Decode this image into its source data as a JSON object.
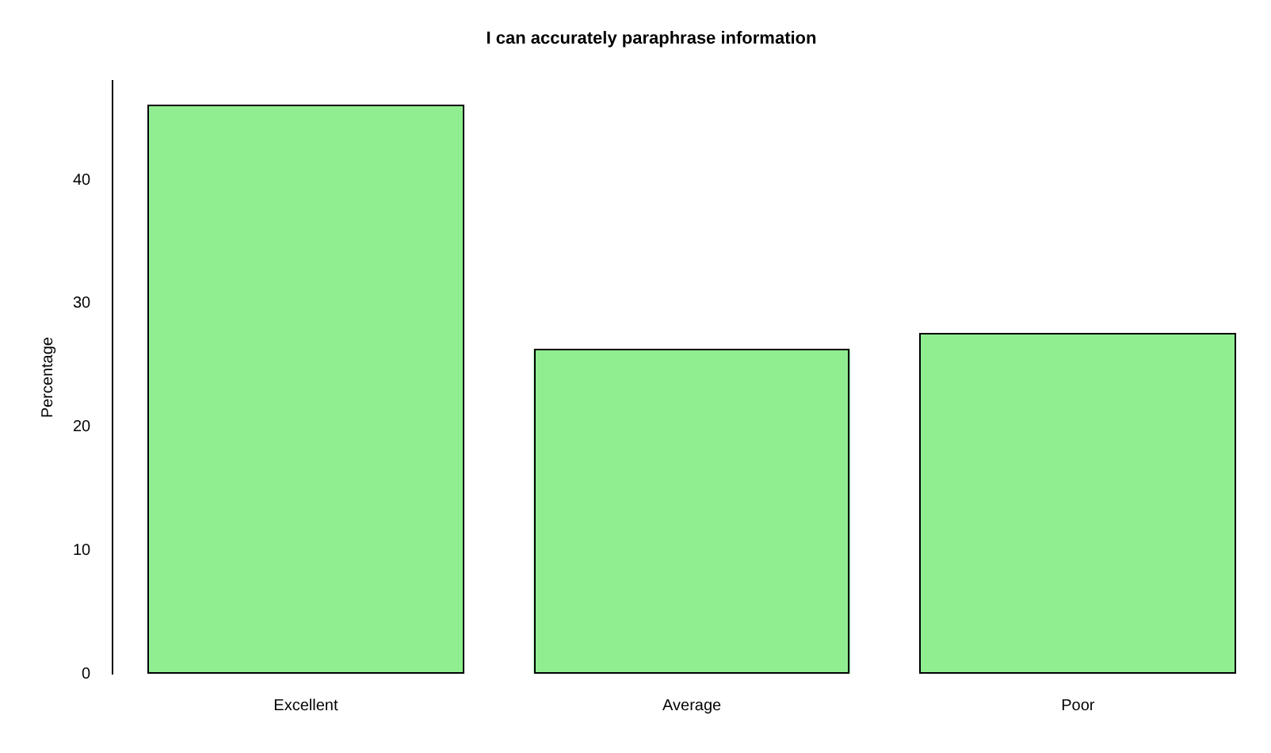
{
  "chart_data": {
    "type": "bar",
    "title": "I can accurately paraphrase information",
    "ylabel": "Percentage",
    "categories": [
      "Excellent",
      "Average",
      "Poor"
    ],
    "values": [
      46.1,
      26.3,
      27.6
    ],
    "color": "#90ee90",
    "ylim": [
      0,
      48
    ],
    "yticks": [
      0,
      10,
      20,
      30,
      40
    ],
    "grid": false,
    "legend": false
  }
}
